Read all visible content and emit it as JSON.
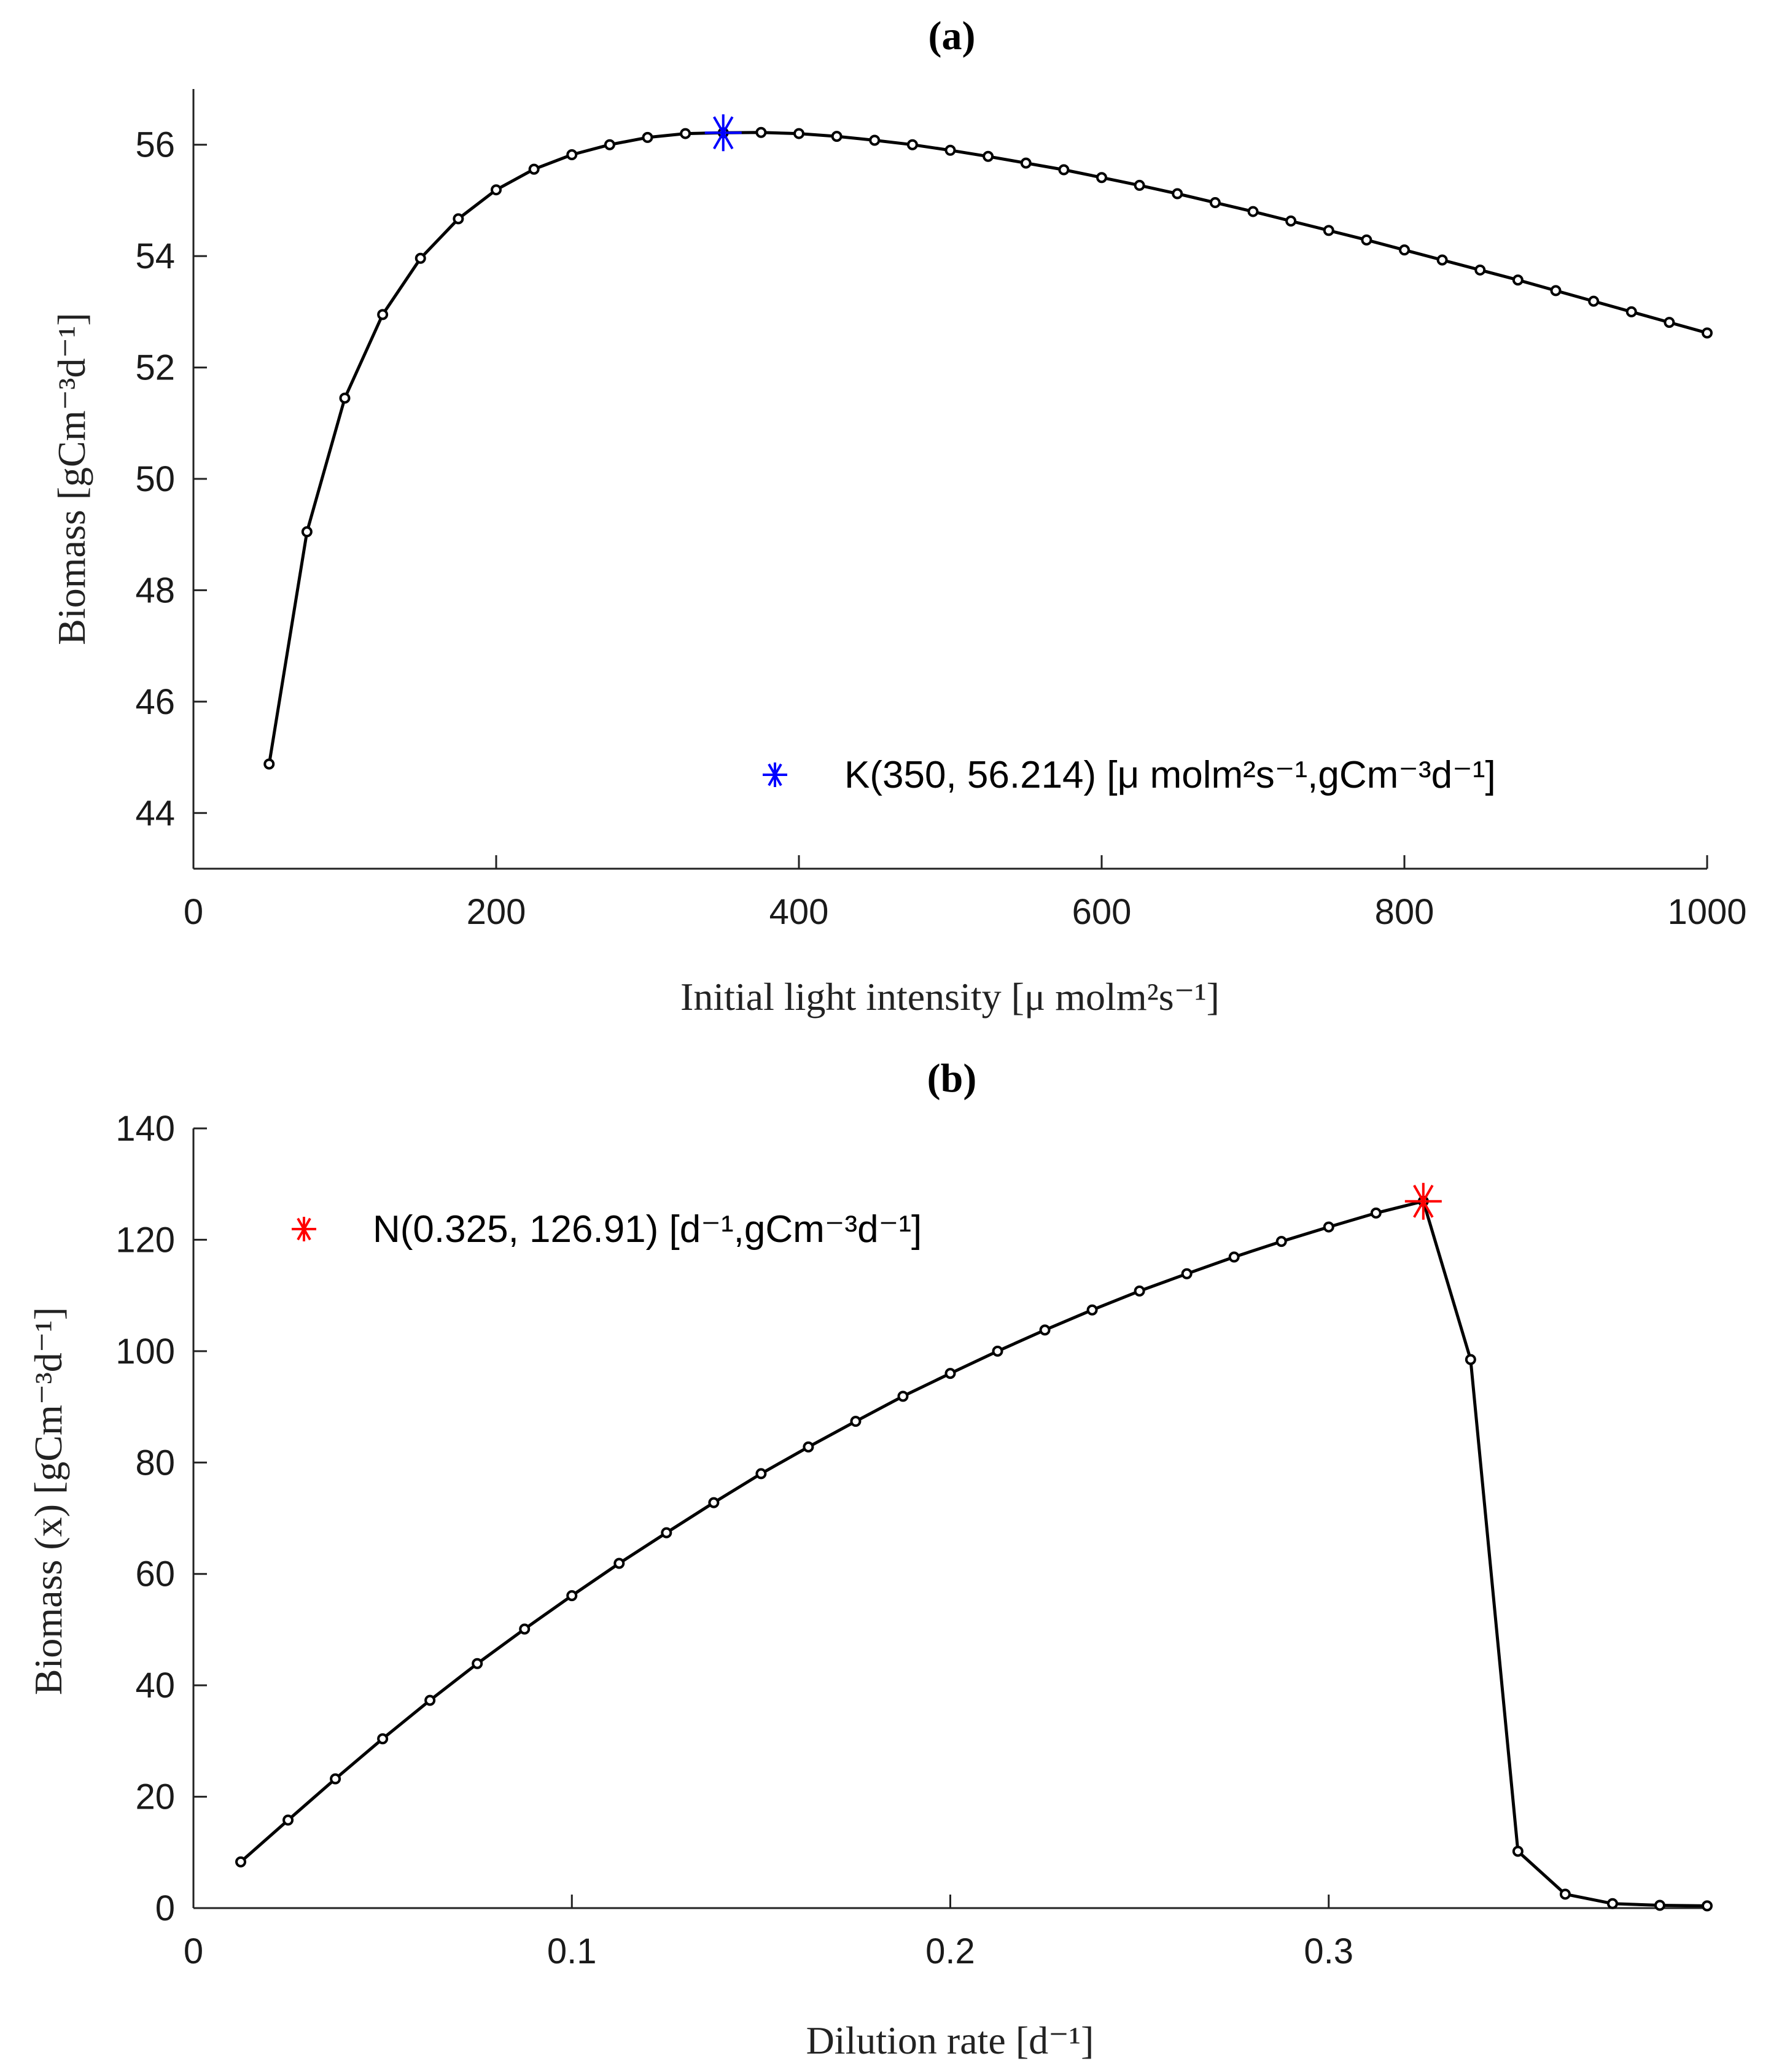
{
  "chart_data": [
    {
      "type": "line",
      "title": "(a)",
      "xlabel": "Initial light intensity [μ molm²s⁻¹]",
      "ylabel": "Biomass [gCm⁻³d⁻¹]",
      "xlim": [
        0,
        1000
      ],
      "ylim": [
        43,
        57
      ],
      "xticks": [
        0,
        200,
        400,
        600,
        800,
        1000
      ],
      "yticks": [
        44,
        46,
        48,
        50,
        52,
        54,
        56
      ],
      "series": [
        {
          "name": "biomass",
          "color": "#000000",
          "x": [
            50,
            75,
            100,
            125,
            150,
            175,
            200,
            225,
            250,
            275,
            300,
            325,
            350,
            375,
            400,
            425,
            450,
            475,
            500,
            525,
            550,
            575,
            600,
            625,
            650,
            675,
            700,
            725,
            750,
            775,
            800,
            825,
            850,
            875,
            900,
            925,
            950,
            975,
            1000
          ],
          "y": [
            44.88,
            49.05,
            51.45,
            52.95,
            53.96,
            54.67,
            55.19,
            55.56,
            55.82,
            56.0,
            56.13,
            56.2,
            56.214,
            56.22,
            56.2,
            56.15,
            56.08,
            56.0,
            55.9,
            55.79,
            55.67,
            55.55,
            55.41,
            55.27,
            55.12,
            54.96,
            54.8,
            54.63,
            54.46,
            54.29,
            54.11,
            53.93,
            53.75,
            53.57,
            53.38,
            53.19,
            53.0,
            52.81,
            52.62
          ]
        }
      ],
      "marker": {
        "label": "K(350,  56.214) [μ molm²s⁻¹,gCm⁻³d⁻¹]",
        "x": 350,
        "y": 56.214,
        "color": "#0000ff"
      },
      "legend_position": "bottom-right"
    },
    {
      "type": "line",
      "title": "(b)",
      "xlabel": "Dilution rate [d⁻¹]",
      "ylabel": "Biomass (x) [gCm⁻³d⁻¹]",
      "xlim": [
        0,
        0.4
      ],
      "ylim": [
        0,
        140
      ],
      "xticks": [
        0,
        0.1,
        0.2,
        0.3
      ],
      "yticks": [
        0,
        20,
        40,
        60,
        80,
        100,
        120,
        140
      ],
      "series": [
        {
          "name": "biomass",
          "color": "#000000",
          "x": [
            0.0125,
            0.025,
            0.0375,
            0.05,
            0.0625,
            0.075,
            0.0875,
            0.1,
            0.1125,
            0.125,
            0.1375,
            0.15,
            0.1625,
            0.175,
            0.1875,
            0.2,
            0.2125,
            0.225,
            0.2375,
            0.25,
            0.2625,
            0.275,
            0.2875,
            0.3,
            0.3125,
            0.325,
            0.3375,
            0.35,
            0.3625,
            0.375,
            0.3875,
            0.4
          ],
          "y": [
            8.3,
            15.8,
            23.2,
            30.4,
            37.3,
            43.9,
            50.1,
            56.1,
            61.9,
            67.4,
            72.8,
            78.0,
            82.8,
            87.4,
            91.9,
            96.0,
            100.0,
            103.8,
            107.4,
            110.8,
            113.9,
            116.9,
            119.7,
            122.3,
            124.8,
            126.91,
            98.5,
            10.2,
            2.5,
            0.8,
            0.5,
            0.4
          ]
        }
      ],
      "marker": {
        "label": "N(0.325,  126.91) [d⁻¹,gCm⁻³d⁻¹]",
        "x": 0.325,
        "y": 126.91,
        "color": "#ff0000"
      },
      "legend_position": "top-left"
    }
  ]
}
